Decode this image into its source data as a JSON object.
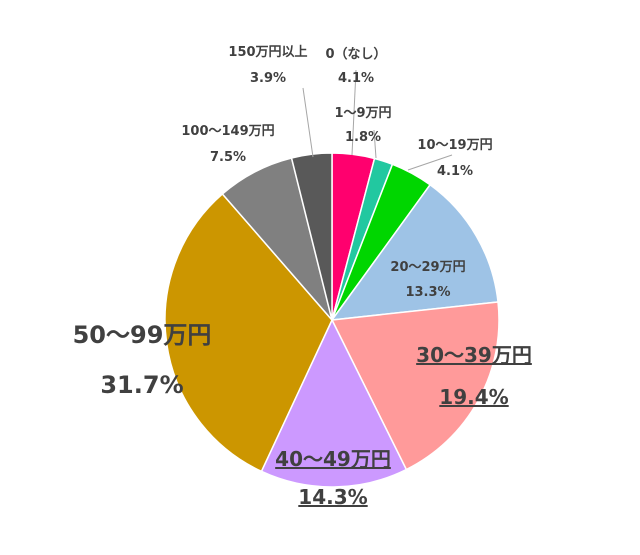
{
  "chart_data": {
    "type": "pie",
    "title": "",
    "slices": [
      {
        "label": "0（なし）",
        "value": 4.1,
        "value_label": "4.1%",
        "color": "#ff006e"
      },
      {
        "label": "1～9万円",
        "value": 1.8,
        "value_label": "1.8%",
        "color": "#22c8a0"
      },
      {
        "label": "10～19万円",
        "value": 4.1,
        "value_label": "4.1%",
        "color": "#00d600"
      },
      {
        "label": "20～29万円",
        "value": 13.3,
        "value_label": "13.3%",
        "color": "#9ec3e6"
      },
      {
        "label": "30～39万円",
        "value": 19.4,
        "value_label": "19.4%",
        "color": "#ff9a9a"
      },
      {
        "label": "40～49万円",
        "value": 14.3,
        "value_label": "14.3%",
        "color": "#cc99ff"
      },
      {
        "label": "50～99万円",
        "value": 31.7,
        "value_label": "31.7%",
        "color": "#cc9600"
      },
      {
        "label": "100～149万円",
        "value": 7.5,
        "value_label": "7.5%",
        "color": "#808080"
      },
      {
        "label": "150万円以上",
        "value": 3.9,
        "value_label": "3.9%",
        "color": "#595959"
      }
    ]
  }
}
